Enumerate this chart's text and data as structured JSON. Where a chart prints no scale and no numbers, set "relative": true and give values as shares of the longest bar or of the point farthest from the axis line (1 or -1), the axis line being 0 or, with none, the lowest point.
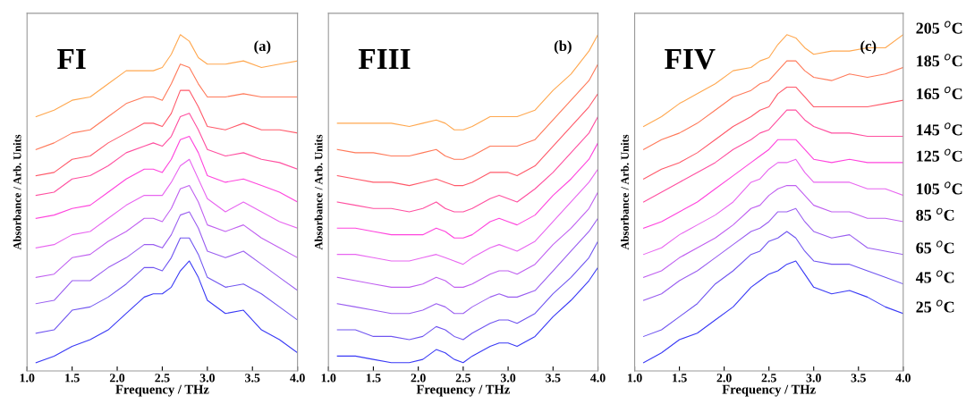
{
  "chart_data": [
    {
      "type": "line",
      "relative": true,
      "tick_labels": "x",
      "xlabel": "Frequency / THz",
      "ylabel": "Absorbance / Arb. Units",
      "annotations": [
        "FI",
        "(a)"
      ],
      "xlim": [
        1.0,
        4.0
      ],
      "xticks": [
        {
          "value": 1.0,
          "label": "1.0"
        },
        {
          "value": 1.5,
          "label": "1.5"
        },
        {
          "value": 2.0,
          "label": "2.0"
        },
        {
          "value": 2.5,
          "label": "2.5"
        },
        {
          "value": 3.0,
          "label": "3.0"
        },
        {
          "value": 3.5,
          "label": "3.5"
        },
        {
          "value": 4.0,
          "label": "4.0"
        }
      ],
      "x": [
        1.1,
        1.3,
        1.5,
        1.7,
        1.9,
        2.1,
        2.3,
        2.4,
        2.5,
        2.6,
        2.7,
        2.8,
        2.9,
        3.0,
        3.2,
        3.4,
        3.6,
        3.8,
        4.0
      ],
      "series": [
        {
          "color": "#3a3af5",
          "values": [
            0.0,
            0.02,
            0.05,
            0.07,
            0.1,
            0.15,
            0.2,
            0.21,
            0.21,
            0.23,
            0.28,
            0.31,
            0.26,
            0.19,
            0.15,
            0.16,
            0.1,
            0.07,
            0.03
          ]
        },
        {
          "color": "#7055f0",
          "values": [
            0.09,
            0.1,
            0.16,
            0.17,
            0.2,
            0.24,
            0.29,
            0.29,
            0.28,
            0.32,
            0.38,
            0.38,
            0.33,
            0.26,
            0.23,
            0.24,
            0.21,
            0.17,
            0.13
          ]
        },
        {
          "color": "#9a5ef0",
          "values": [
            0.18,
            0.19,
            0.25,
            0.25,
            0.29,
            0.32,
            0.36,
            0.36,
            0.35,
            0.39,
            0.45,
            0.46,
            0.41,
            0.34,
            0.32,
            0.34,
            0.3,
            0.26,
            0.22
          ]
        },
        {
          "color": "#c060f0",
          "values": [
            0.26,
            0.27,
            0.32,
            0.33,
            0.37,
            0.4,
            0.44,
            0.44,
            0.43,
            0.47,
            0.53,
            0.54,
            0.49,
            0.42,
            0.4,
            0.42,
            0.38,
            0.35,
            0.32
          ]
        },
        {
          "color": "#e866f0",
          "values": [
            0.35,
            0.36,
            0.39,
            0.4,
            0.44,
            0.48,
            0.51,
            0.51,
            0.51,
            0.55,
            0.6,
            0.62,
            0.56,
            0.5,
            0.46,
            0.49,
            0.46,
            0.43,
            0.41
          ]
        },
        {
          "color": "#ff44dd",
          "values": [
            0.44,
            0.45,
            0.47,
            0.48,
            0.52,
            0.56,
            0.59,
            0.59,
            0.58,
            0.62,
            0.68,
            0.69,
            0.64,
            0.57,
            0.55,
            0.56,
            0.54,
            0.52,
            0.49
          ]
        },
        {
          "color": "#ff50a0",
          "values": [
            0.51,
            0.52,
            0.56,
            0.57,
            0.6,
            0.64,
            0.66,
            0.67,
            0.66,
            0.69,
            0.75,
            0.76,
            0.71,
            0.65,
            0.63,
            0.64,
            0.62,
            0.61,
            0.59
          ]
        },
        {
          "color": "#ff5a6a",
          "values": [
            0.57,
            0.58,
            0.62,
            0.63,
            0.67,
            0.7,
            0.73,
            0.73,
            0.72,
            0.76,
            0.83,
            0.83,
            0.78,
            0.72,
            0.71,
            0.73,
            0.71,
            0.71,
            0.7
          ]
        },
        {
          "color": "#ff7a5a",
          "values": [
            0.65,
            0.67,
            0.7,
            0.71,
            0.75,
            0.79,
            0.81,
            0.81,
            0.8,
            0.85,
            0.91,
            0.9,
            0.85,
            0.81,
            0.81,
            0.82,
            0.81,
            0.81,
            0.81
          ]
        },
        {
          "color": "#ffa850",
          "values": [
            0.75,
            0.77,
            0.8,
            0.81,
            0.85,
            0.89,
            0.89,
            0.89,
            0.9,
            0.94,
            1.0,
            0.98,
            0.93,
            0.91,
            0.91,
            0.92,
            0.9,
            0.91,
            0.92
          ]
        }
      ]
    },
    {
      "type": "line",
      "relative": true,
      "tick_labels": "x",
      "xlabel": "Frequency / THz",
      "ylabel": "Absorbance / Arb. Units",
      "annotations": [
        "FIII",
        "(b)"
      ],
      "xlim": [
        1.0,
        4.0
      ],
      "xticks": [
        {
          "value": 1.0,
          "label": "1.0"
        },
        {
          "value": 1.5,
          "label": "1.5"
        },
        {
          "value": 2.0,
          "label": "2.0"
        },
        {
          "value": 2.5,
          "label": "2.5"
        },
        {
          "value": 3.0,
          "label": "3.0"
        },
        {
          "value": 3.5,
          "label": "3.5"
        },
        {
          "value": 4.0,
          "label": "4.0"
        }
      ],
      "x": [
        1.1,
        1.3,
        1.5,
        1.7,
        1.9,
        2.05,
        2.2,
        2.3,
        2.4,
        2.5,
        2.6,
        2.8,
        2.9,
        3.0,
        3.1,
        3.3,
        3.5,
        3.7,
        3.9,
        4.0
      ],
      "series": [
        {
          "color": "#3a3af5",
          "values": [
            0.02,
            0.02,
            0.01,
            0.0,
            0.0,
            0.01,
            0.04,
            0.03,
            0.01,
            0.0,
            0.02,
            0.05,
            0.06,
            0.06,
            0.05,
            0.08,
            0.14,
            0.19,
            0.25,
            0.29
          ]
        },
        {
          "color": "#7055f0",
          "values": [
            0.1,
            0.1,
            0.08,
            0.08,
            0.07,
            0.08,
            0.11,
            0.1,
            0.08,
            0.07,
            0.09,
            0.12,
            0.13,
            0.13,
            0.12,
            0.15,
            0.21,
            0.26,
            0.32,
            0.37
          ]
        },
        {
          "color": "#9a5ef0",
          "values": [
            0.18,
            0.17,
            0.16,
            0.15,
            0.15,
            0.16,
            0.18,
            0.17,
            0.15,
            0.15,
            0.17,
            0.2,
            0.21,
            0.2,
            0.2,
            0.22,
            0.28,
            0.34,
            0.4,
            0.44
          ]
        },
        {
          "color": "#c060f0",
          "values": [
            0.26,
            0.25,
            0.24,
            0.23,
            0.23,
            0.24,
            0.26,
            0.25,
            0.23,
            0.23,
            0.24,
            0.27,
            0.28,
            0.28,
            0.27,
            0.3,
            0.36,
            0.41,
            0.47,
            0.52
          ]
        },
        {
          "color": "#e866f0",
          "values": [
            0.33,
            0.33,
            0.32,
            0.31,
            0.31,
            0.32,
            0.33,
            0.32,
            0.31,
            0.3,
            0.32,
            0.35,
            0.36,
            0.35,
            0.34,
            0.37,
            0.43,
            0.49,
            0.55,
            0.59
          ]
        },
        {
          "color": "#ff44dd",
          "values": [
            0.41,
            0.41,
            0.4,
            0.39,
            0.39,
            0.39,
            0.41,
            0.4,
            0.38,
            0.38,
            0.39,
            0.43,
            0.44,
            0.43,
            0.42,
            0.45,
            0.51,
            0.56,
            0.62,
            0.67
          ]
        },
        {
          "color": "#ff50a0",
          "values": [
            0.49,
            0.48,
            0.47,
            0.47,
            0.46,
            0.47,
            0.49,
            0.47,
            0.46,
            0.46,
            0.47,
            0.5,
            0.51,
            0.5,
            0.49,
            0.53,
            0.58,
            0.64,
            0.7,
            0.75
          ]
        },
        {
          "color": "#ff5a6a",
          "values": [
            0.57,
            0.56,
            0.55,
            0.55,
            0.54,
            0.55,
            0.56,
            0.55,
            0.54,
            0.54,
            0.55,
            0.58,
            0.58,
            0.58,
            0.57,
            0.6,
            0.66,
            0.72,
            0.78,
            0.82
          ]
        },
        {
          "color": "#ff7a5a",
          "values": [
            0.65,
            0.64,
            0.64,
            0.63,
            0.63,
            0.64,
            0.65,
            0.63,
            0.62,
            0.62,
            0.63,
            0.66,
            0.66,
            0.66,
            0.66,
            0.68,
            0.74,
            0.8,
            0.86,
            0.91
          ]
        },
        {
          "color": "#ffa850",
          "values": [
            0.73,
            0.73,
            0.73,
            0.73,
            0.72,
            0.73,
            0.74,
            0.73,
            0.71,
            0.71,
            0.72,
            0.75,
            0.75,
            0.75,
            0.75,
            0.77,
            0.83,
            0.88,
            0.95,
            1.0
          ]
        }
      ]
    },
    {
      "type": "line",
      "relative": true,
      "tick_labels": "x",
      "xlabel": "Frequency / THz",
      "ylabel": "Absorbance / Arb. Units",
      "annotations": [
        "FIV",
        "(c)"
      ],
      "xlim": [
        1.0,
        4.0
      ],
      "xticks": [
        {
          "value": 1.0,
          "label": "1.0"
        },
        {
          "value": 1.5,
          "label": "1.5"
        },
        {
          "value": 2.0,
          "label": "2.0"
        },
        {
          "value": 2.5,
          "label": "2.5"
        },
        {
          "value": 3.0,
          "label": "3.0"
        },
        {
          "value": 3.5,
          "label": "3.5"
        },
        {
          "value": 4.0,
          "label": "4.0"
        }
      ],
      "x": [
        1.1,
        1.3,
        1.5,
        1.7,
        1.9,
        2.1,
        2.3,
        2.4,
        2.5,
        2.6,
        2.7,
        2.8,
        2.9,
        3.0,
        3.2,
        3.4,
        3.6,
        3.8,
        4.0
      ],
      "series": [
        {
          "name": "25 $^{o}$C",
          "color": "#3a3af5",
          "values": [
            0.0,
            0.03,
            0.07,
            0.09,
            0.13,
            0.17,
            0.23,
            0.25,
            0.27,
            0.28,
            0.3,
            0.31,
            0.27,
            0.23,
            0.21,
            0.22,
            0.2,
            0.17,
            0.15
          ]
        },
        {
          "name": "45 $^{o}$C",
          "color": "#7055f0",
          "values": [
            0.08,
            0.1,
            0.14,
            0.18,
            0.24,
            0.28,
            0.33,
            0.34,
            0.37,
            0.38,
            0.4,
            0.38,
            0.34,
            0.31,
            0.3,
            0.3,
            0.28,
            0.26,
            0.24
          ]
        },
        {
          "name": "65 $^{o}$C",
          "color": "#9a5ef0",
          "values": [
            0.19,
            0.21,
            0.25,
            0.28,
            0.32,
            0.36,
            0.4,
            0.41,
            0.43,
            0.46,
            0.46,
            0.47,
            0.43,
            0.4,
            0.38,
            0.39,
            0.35,
            0.34,
            0.33
          ]
        },
        {
          "name": "85 $^{o}$C",
          "color": "#c060f0",
          "values": [
            0.26,
            0.28,
            0.32,
            0.35,
            0.38,
            0.42,
            0.47,
            0.48,
            0.51,
            0.53,
            0.54,
            0.54,
            0.51,
            0.48,
            0.46,
            0.46,
            0.44,
            0.44,
            0.43
          ]
        },
        {
          "name": "105 $^{o}$C",
          "color": "#e866f0",
          "values": [
            0.33,
            0.35,
            0.39,
            0.42,
            0.45,
            0.49,
            0.55,
            0.56,
            0.59,
            0.61,
            0.61,
            0.62,
            0.58,
            0.55,
            0.55,
            0.55,
            0.53,
            0.53,
            0.51
          ]
        },
        {
          "name": "125 $^{o}$C",
          "color": "#ff44dd",
          "values": [
            0.41,
            0.43,
            0.46,
            0.49,
            0.53,
            0.57,
            0.61,
            0.63,
            0.65,
            0.68,
            0.68,
            0.68,
            0.65,
            0.62,
            0.61,
            0.62,
            0.61,
            0.61,
            0.61
          ]
        },
        {
          "name": "145 $^{o}$C",
          "color": "#ff50a0",
          "values": [
            0.49,
            0.52,
            0.55,
            0.58,
            0.61,
            0.65,
            0.68,
            0.7,
            0.71,
            0.74,
            0.77,
            0.77,
            0.74,
            0.72,
            0.7,
            0.7,
            0.69,
            0.69,
            0.69
          ]
        },
        {
          "name": "165 $^{o}$C",
          "color": "#ff5a6a",
          "values": [
            0.56,
            0.59,
            0.61,
            0.64,
            0.68,
            0.72,
            0.75,
            0.77,
            0.78,
            0.82,
            0.84,
            0.84,
            0.81,
            0.78,
            0.78,
            0.78,
            0.78,
            0.79,
            0.8
          ]
        },
        {
          "name": "185 $^{o}$C",
          "color": "#ff7a5a",
          "values": [
            0.65,
            0.68,
            0.7,
            0.73,
            0.77,
            0.81,
            0.83,
            0.85,
            0.86,
            0.89,
            0.92,
            0.92,
            0.89,
            0.87,
            0.86,
            0.88,
            0.87,
            0.88,
            0.9
          ]
        },
        {
          "name": "205 $^{o}$C",
          "color": "#ffa850",
          "values": [
            0.72,
            0.75,
            0.79,
            0.82,
            0.85,
            0.89,
            0.9,
            0.92,
            0.93,
            0.97,
            1.0,
            0.99,
            0.96,
            0.94,
            0.95,
            0.95,
            0.96,
            0.96,
            1.0
          ]
        }
      ]
    }
  ]
}
